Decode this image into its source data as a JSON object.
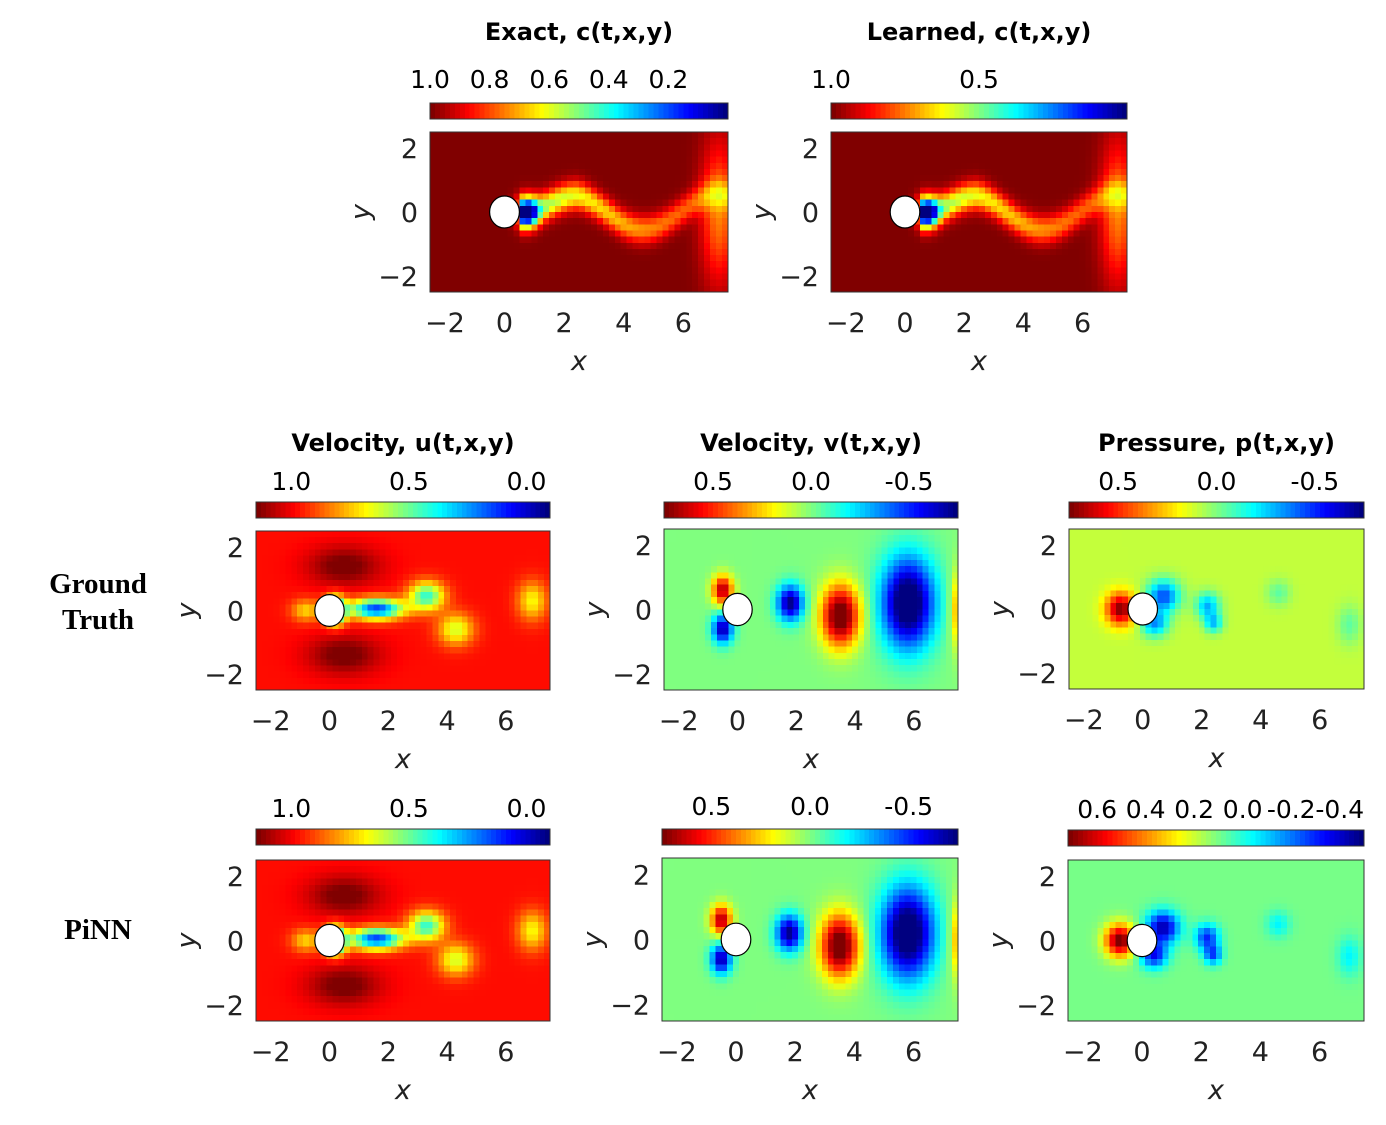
{
  "row_labels": {
    "ground_truth": "Ground Truth",
    "pinn": "PiNN"
  },
  "chart_data": [
    {
      "type": "heatmap",
      "id": "exact_c",
      "title": "Exact, c(t,x,y)",
      "xlabel": "x",
      "ylabel": "y",
      "xlim": [
        -2.5,
        7.5
      ],
      "ylim": [
        -2.5,
        2.5
      ],
      "xticks": [
        -2,
        0,
        2,
        4,
        6
      ],
      "yticks": [
        2,
        0,
        -2
      ],
      "colorbar": {
        "ticks": [
          "1.0",
          "0.8",
          "0.6",
          "0.4",
          "0.2"
        ],
        "values": [
          1.0,
          0.8,
          0.6,
          0.4,
          0.2
        ],
        "range": [
          1.0,
          0.0
        ]
      },
      "field": "c"
    },
    {
      "type": "heatmap",
      "id": "learned_c",
      "title": "Learned, c(t,x,y)",
      "xlabel": "x",
      "ylabel": "y",
      "xlim": [
        -2.5,
        7.5
      ],
      "ylim": [
        -2.5,
        2.5
      ],
      "xticks": [
        -2,
        0,
        2,
        4,
        6
      ],
      "yticks": [
        2,
        0,
        -2
      ],
      "colorbar": {
        "ticks": [
          "1.0",
          "0.5"
        ],
        "values": [
          1.0,
          0.5
        ],
        "range": [
          1.0,
          0.0
        ]
      },
      "field": "c"
    },
    {
      "type": "heatmap",
      "id": "gt_u",
      "title": "Velocity, u(t,x,y)",
      "xlabel": "x",
      "ylabel": "y",
      "xlim": [
        -2.5,
        7.5
      ],
      "ylim": [
        -2.5,
        2.5
      ],
      "xticks": [
        -2,
        0,
        2,
        4,
        6
      ],
      "yticks": [
        2,
        0,
        -2
      ],
      "colorbar": {
        "ticks": [
          "1.0",
          "0.5",
          "0.0"
        ],
        "values": [
          1.0,
          0.5,
          0.0
        ],
        "range": [
          1.15,
          -0.1
        ]
      },
      "field": "u"
    },
    {
      "type": "heatmap",
      "id": "gt_v",
      "title": "Velocity, v(t,x,y)",
      "xlabel": "x",
      "ylabel": "y",
      "xlim": [
        -2.5,
        7.5
      ],
      "ylim": [
        -2.5,
        2.5
      ],
      "xticks": [
        -2,
        0,
        2,
        4,
        6
      ],
      "yticks": [
        2,
        0,
        -2
      ],
      "colorbar": {
        "ticks": [
          "0.5",
          "0.0",
          "-0.5"
        ],
        "values": [
          0.5,
          0.0,
          -0.5
        ],
        "range": [
          0.75,
          -0.75
        ]
      },
      "field": "v"
    },
    {
      "type": "heatmap",
      "id": "gt_p",
      "title": "Pressure, p(t,x,y)",
      "xlabel": "x",
      "ylabel": "y",
      "xlim": [
        -2.5,
        7.5
      ],
      "ylim": [
        -2.5,
        2.5
      ],
      "xticks": [
        -2,
        0,
        2,
        4,
        6
      ],
      "yticks": [
        2,
        0,
        -2
      ],
      "colorbar": {
        "ticks": [
          "0.5",
          "0.0",
          "-0.5"
        ],
        "values": [
          0.5,
          0.0,
          -0.5
        ],
        "range": [
          0.75,
          -0.75
        ]
      },
      "field": "p"
    },
    {
      "type": "heatmap",
      "id": "pinn_u",
      "title": "",
      "xlabel": "x",
      "ylabel": "y",
      "xlim": [
        -2.5,
        7.5
      ],
      "ylim": [
        -2.5,
        2.5
      ],
      "xticks": [
        -2,
        0,
        2,
        4,
        6
      ],
      "yticks": [
        2,
        0,
        -2
      ],
      "colorbar": {
        "ticks": [
          "1.0",
          "0.5",
          "0.0"
        ],
        "values": [
          1.0,
          0.5,
          0.0
        ],
        "range": [
          1.15,
          -0.1
        ]
      },
      "field": "u"
    },
    {
      "type": "heatmap",
      "id": "pinn_v",
      "title": "",
      "xlabel": "x",
      "ylabel": "y",
      "xlim": [
        -2.5,
        7.5
      ],
      "ylim": [
        -2.5,
        2.5
      ],
      "xticks": [
        -2,
        0,
        2,
        4,
        6
      ],
      "yticks": [
        2,
        0,
        -2
      ],
      "colorbar": {
        "ticks": [
          "0.5",
          "0.0",
          "-0.5"
        ],
        "values": [
          0.5,
          0.0,
          -0.5
        ],
        "range": [
          0.75,
          -0.75
        ]
      },
      "field": "v"
    },
    {
      "type": "heatmap",
      "id": "pinn_p",
      "title": "",
      "xlabel": "x",
      "ylabel": "y",
      "xlim": [
        -2.5,
        7.5
      ],
      "ylim": [
        -2.5,
        2.5
      ],
      "xticks": [
        -2,
        0,
        2,
        4,
        6
      ],
      "yticks": [
        2,
        0,
        -2
      ],
      "colorbar": {
        "ticks": [
          "0.6",
          "0.4",
          "0.2",
          "0.0",
          "-0.2",
          "-0.4"
        ],
        "values": [
          0.6,
          0.4,
          0.2,
          0.0,
          -0.2,
          -0.4
        ],
        "range": [
          0.72,
          -0.5
        ]
      },
      "field": "p"
    }
  ]
}
